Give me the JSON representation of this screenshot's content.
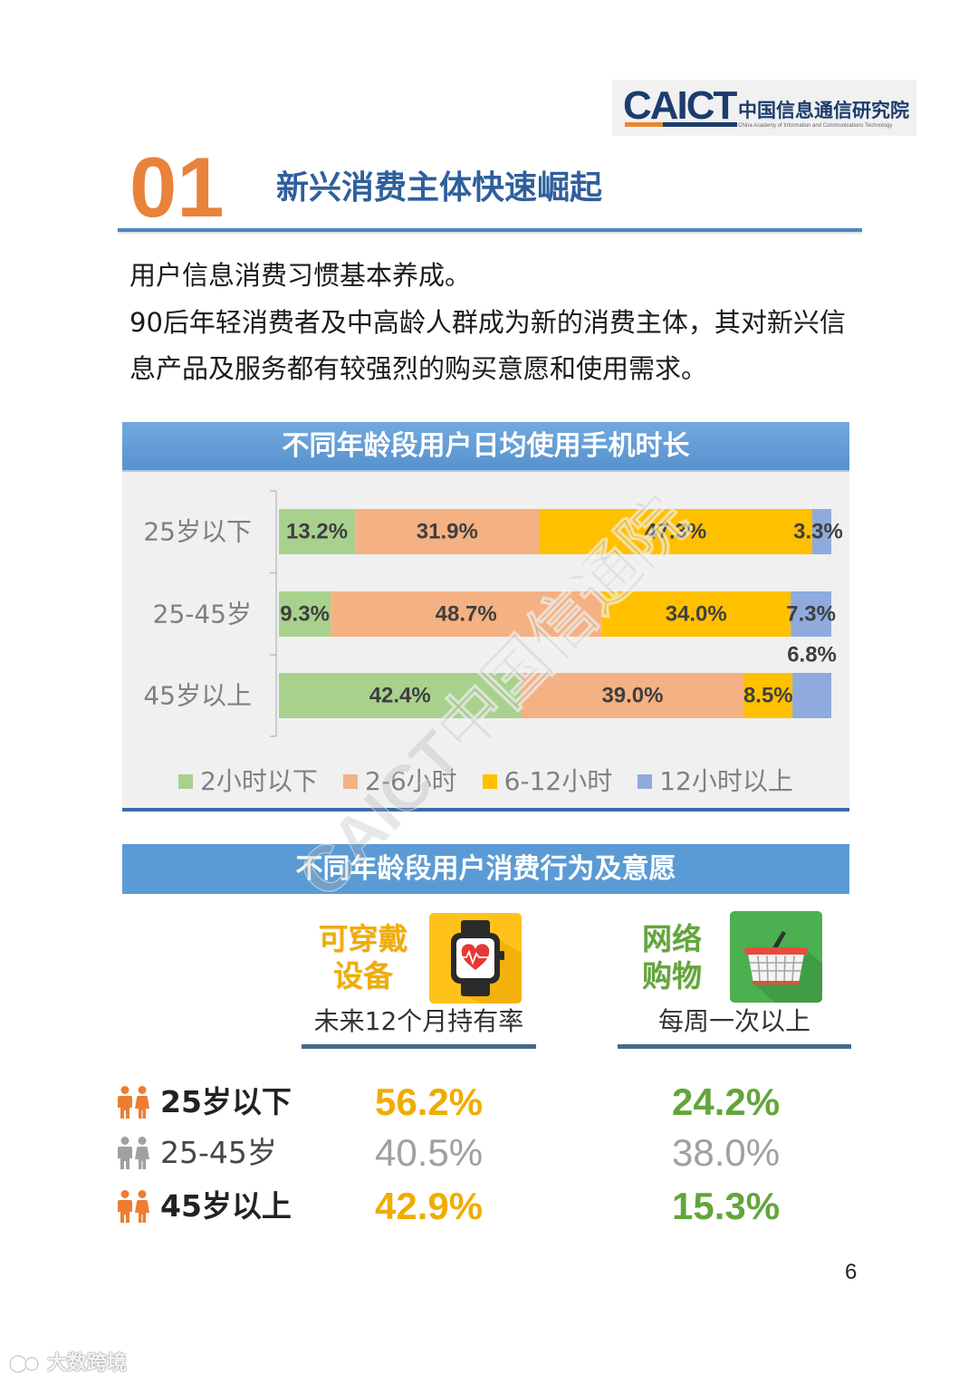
{
  "logo": {
    "wordmark": "CAICT",
    "cn_name": "中国信息通信研究院",
    "en_name": "China Academy of Information and Communications Technology",
    "colors": {
      "navy": "#1D3C6E",
      "orange": "#E8862E"
    }
  },
  "section": {
    "number": "01",
    "title": "新兴消费主体快速崛起"
  },
  "intro": {
    "lines": [
      "用户信息消费习惯基本养成。",
      "90后年轻消费者及中高龄人群成为新的消费主体，其对新兴信",
      "息产品及服务都有较强烈的购买意愿和使用需求。"
    ]
  },
  "chart_data": {
    "type": "bar",
    "horizontal": true,
    "stacked_percent": true,
    "title": "不同年龄段用户日均使用手机时长",
    "unit": "%",
    "categories": [
      "25岁以下",
      "25-45岁",
      "45岁以上"
    ],
    "series": [
      {
        "name": "2小时以下",
        "color": "#A9D18E",
        "values": [
          13.2,
          9.3,
          42.4
        ]
      },
      {
        "name": "2-6小时",
        "color": "#F4B183",
        "values": [
          31.9,
          48.7,
          39.0
        ]
      },
      {
        "name": "6-12小时",
        "color": "#FFC000",
        "values": [
          47.3,
          34.0,
          8.5
        ]
      },
      {
        "name": "12小时以上",
        "color": "#8FAADC",
        "values": [
          3.3,
          7.3,
          6.8
        ]
      }
    ],
    "legend": "bottom",
    "grid": false
  },
  "behavior": {
    "title": "不同年龄段用户消费行为及意愿",
    "colors": {
      "highlight_icon": "#ED7D31",
      "muted": "#A0A0A0"
    },
    "metrics": [
      {
        "title_lines": [
          "可穿戴",
          "设备"
        ],
        "icon": "smartwatch-icon",
        "caption": "未来12个月持有率",
        "color": "#F0AC00"
      },
      {
        "title_lines": [
          "网络",
          "购物"
        ],
        "icon": "shopping-basket-icon",
        "caption": "每周一次以上",
        "color": "#63A53A"
      }
    ],
    "rows": [
      {
        "age": "25岁以下",
        "values": [
          "56.2%",
          "24.2%"
        ],
        "muted": false
      },
      {
        "age": "25-45岁",
        "values": [
          "40.5%",
          "38.0%"
        ],
        "muted": true
      },
      {
        "age": "45岁以上",
        "values": [
          "42.9%",
          "15.3%"
        ],
        "muted": false
      }
    ]
  },
  "page_number": "6",
  "watermarks": {
    "chart": "CAICT中国信通院",
    "corner": "大数跨境"
  }
}
